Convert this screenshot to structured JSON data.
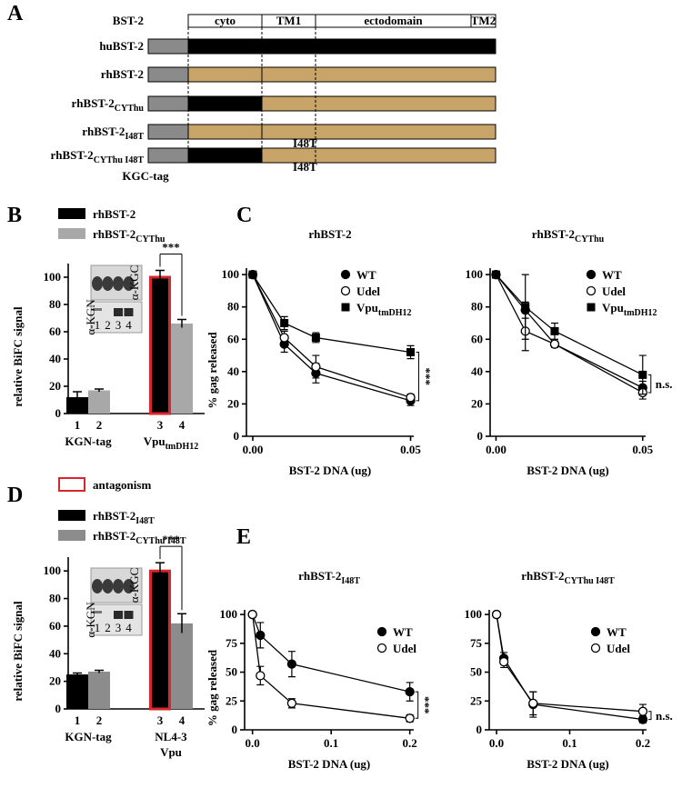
{
  "panel_labels": [
    "A",
    "B",
    "C",
    "D",
    "E"
  ],
  "diagram": {
    "title": "BST-2",
    "domains": [
      "cyto",
      "TM1",
      "ectodomain",
      "TM2"
    ],
    "tag_label": "KGC-tag",
    "tag_color": "#8a8a8a",
    "rows": [
      {
        "name": "huBST-2",
        "cyto_color": "#000000",
        "rest_color": "#000000"
      },
      {
        "name": "rhBST-2",
        "cyto_color": "#c8a468",
        "rest_color": "#c8a468"
      },
      {
        "name": "rhBST-2",
        "name_sub": "CYThu",
        "cyto_color": "#000000",
        "rest_color": "#c8a468"
      },
      {
        "name": "rhBST-2",
        "name_sub": "I48T",
        "cyto_color": "#c8a468",
        "rest_color": "#c8a468",
        "mutation": "I48T"
      },
      {
        "name": "rhBST-2",
        "name_sub": "CYThu I48T",
        "cyto_color": "#000000",
        "rest_color": "#c8a468",
        "mutation": "I48T"
      }
    ]
  },
  "chart_data": [
    {
      "type": "bar",
      "ylabel": "relative BiFC signal",
      "ylim": [
        0,
        110
      ],
      "yticks": [
        0,
        20,
        40,
        60,
        80,
        100
      ],
      "categories": [
        {
          "text": "KGN-tag"
        },
        {
          "text": "Vpu",
          "sub": "tmDH12"
        }
      ],
      "series": [
        {
          "name": "rhBST-2",
          "color": "#000000",
          "values": [
            12,
            100
          ],
          "errors": [
            4,
            5
          ],
          "labels": [
            "1",
            "3"
          ]
        },
        {
          "name": "rhBST-2",
          "name_sub": "CYThu",
          "color": "#a8a8a8",
          "values": [
            17,
            66
          ],
          "errors": [
            1,
            3
          ],
          "labels": [
            "2",
            "4"
          ]
        }
      ],
      "highlight": {
        "series": 0,
        "category": 1,
        "color": "#d9262c"
      },
      "annotation": {
        "text": "***",
        "category": 1
      },
      "inset": {
        "antibodies": [
          "α-KGC",
          "α-KGN"
        ],
        "lanes": [
          "1",
          "2",
          "3",
          "4"
        ]
      }
    },
    {
      "type": "line",
      "title": "rhBST-2",
      "ylabel": "% gag released",
      "xlabel": "BST-2 DNA (ug)",
      "x": [
        0,
        0.01,
        0.02,
        0.05
      ],
      "xlim": [
        -0.002,
        0.051
      ],
      "xticks": [
        {
          "value": 0,
          "label": "0.00"
        },
        0.05
      ],
      "ylim": [
        0,
        104
      ],
      "yticks": [
        0,
        20,
        40,
        60,
        80,
        100
      ],
      "legend": "upper right",
      "series": [
        {
          "name": "WT",
          "marker": "filled-circle",
          "color": "#000000",
          "values": [
            100,
            57,
            39,
            22
          ],
          "errors": [
            0,
            5,
            6,
            3
          ]
        },
        {
          "name": "Udel",
          "marker": "open-circle",
          "color": "#000000",
          "values": [
            100,
            61,
            43,
            24
          ],
          "errors": [
            0,
            4,
            7,
            2
          ]
        },
        {
          "name": "Vpu",
          "name_sub": "tmDH12",
          "marker": "filled-square",
          "color": "#000000",
          "values": [
            100,
            70,
            61,
            52
          ],
          "errors": [
            0,
            4,
            3,
            4
          ]
        }
      ],
      "annotation": {
        "text": "***",
        "vertical": true
      }
    },
    {
      "type": "line",
      "title": "rhBST-2",
      "title_sub": "CYThu",
      "xlabel": "BST-2 DNA (ug)",
      "x": [
        0,
        0.01,
        0.02,
        0.05
      ],
      "xlim": [
        -0.002,
        0.051
      ],
      "xticks": [
        {
          "value": 0,
          "label": "0.00"
        },
        0.05
      ],
      "ylim": [
        0,
        104
      ],
      "yticks": [
        0,
        20,
        40,
        60,
        80,
        100
      ],
      "legend": "upper right",
      "series": [
        {
          "name": "WT",
          "marker": "filled-circle",
          "color": "#000000",
          "values": [
            100,
            78,
            57,
            30
          ],
          "errors": [
            0,
            5,
            2,
            4
          ]
        },
        {
          "name": "Udel",
          "marker": "open-circle",
          "color": "#000000",
          "values": [
            100,
            65,
            57,
            27
          ],
          "errors": [
            0,
            12,
            2,
            4
          ]
        },
        {
          "name": "Vpu",
          "name_sub": "tmDH12",
          "marker": "filled-square",
          "color": "#000000",
          "values": [
            100,
            80,
            65,
            38
          ],
          "errors": [
            0,
            20,
            5,
            12
          ]
        }
      ],
      "annotation": {
        "text": "n.s.",
        "vertical": false
      }
    },
    {
      "type": "bar",
      "ylabel": "relative BiFC signal",
      "ylim": [
        0,
        110
      ],
      "yticks": [
        0,
        20,
        40,
        60,
        80,
        100
      ],
      "categories": [
        {
          "text": "KGN-tag"
        },
        {
          "text": "NL4-3",
          "line2": "Vpu"
        }
      ],
      "series": [
        {
          "name": "rhBST-2",
          "name_sub": "I48T",
          "color": "#000000",
          "values": [
            25,
            100
          ],
          "errors": [
            1,
            6
          ],
          "labels": [
            "1",
            "3"
          ]
        },
        {
          "name": "rhBST-2",
          "name_sub": "CYThu I48T",
          "color": "#8c8c8c",
          "values": [
            27,
            62
          ],
          "errors": [
            1,
            7
          ],
          "labels": [
            "2",
            "4"
          ]
        }
      ],
      "highlight": {
        "series": 0,
        "category": 1,
        "color": "#d9262c",
        "label": "antagonism"
      },
      "annotation": {
        "text": "***",
        "category": 1
      },
      "inset": {
        "antibodies": [
          "α-KGC",
          "α-KGN"
        ],
        "lanes": [
          "1",
          "2",
          "3",
          "4"
        ]
      }
    },
    {
      "type": "line",
      "title": "rhBST-2",
      "title_sub": "I48T",
      "ylabel": "% gag released",
      "xlabel": "BST-2 DNA (ug)",
      "x": [
        0,
        0.01,
        0.05,
        0.2
      ],
      "xlim": [
        -0.01,
        0.205
      ],
      "xticks": [
        {
          "value": 0,
          "label": "0.0"
        },
        0.1,
        0.2
      ],
      "ylim": [
        0,
        104
      ],
      "yticks": [
        0,
        25,
        50,
        75,
        100
      ],
      "legend": "upper right",
      "series": [
        {
          "name": "WT",
          "marker": "filled-circle",
          "color": "#000000",
          "values": [
            100,
            82,
            57,
            33
          ],
          "errors": [
            0,
            11,
            11,
            8
          ]
        },
        {
          "name": "Udel",
          "marker": "open-circle",
          "color": "#000000",
          "values": [
            100,
            47,
            23,
            10
          ],
          "errors": [
            0,
            8,
            4,
            3
          ]
        }
      ],
      "annotation": {
        "text": "***",
        "vertical": true
      }
    },
    {
      "type": "line",
      "title": "rhBST-2",
      "title_sub": "CYThu I48T",
      "xlabel": "BST-2 DNA (ug)",
      "x": [
        0,
        0.01,
        0.05,
        0.2
      ],
      "xlim": [
        -0.01,
        0.205
      ],
      "xticks": [
        {
          "value": 0,
          "label": "0.0"
        },
        0.1,
        0.2
      ],
      "ylim": [
        0,
        104
      ],
      "yticks": [
        0,
        25,
        50,
        75,
        100
      ],
      "legend": "upper right",
      "series": [
        {
          "name": "WT",
          "marker": "filled-circle",
          "color": "#000000",
          "values": [
            100,
            62,
            22,
            9
          ],
          "errors": [
            0,
            5,
            11,
            3
          ]
        },
        {
          "name": "Udel",
          "marker": "open-circle",
          "color": "#000000",
          "values": [
            100,
            59,
            23,
            16
          ],
          "errors": [
            0,
            5,
            10,
            6
          ]
        }
      ],
      "annotation": {
        "text": "n.s.",
        "vertical": false
      }
    }
  ]
}
